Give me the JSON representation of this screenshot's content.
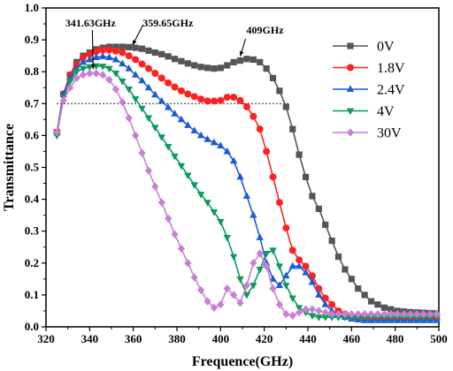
{
  "chart_data": {
    "type": "line",
    "title": "",
    "xlabel": "Frequence(GHz)",
    "ylabel": "Transmittance",
    "xlim": [
      320,
      500
    ],
    "ylim": [
      0.0,
      1.0
    ],
    "xticks": [
      320,
      340,
      360,
      380,
      400,
      420,
      440,
      460,
      480,
      500
    ],
    "yticks": [
      "0.0",
      "0.1",
      "0.2",
      "0.3",
      "0.4",
      "0.5",
      "0.6",
      "0.7",
      "0.8",
      "0.9",
      "1.0"
    ],
    "grid": false,
    "legend_position": "top-right",
    "reference_line": {
      "y": 0.7,
      "x_range": [
        325,
        431
      ],
      "style": "dotted"
    },
    "annotations": [
      {
        "text": "341.63GHz",
        "x": 341.63,
        "y": 0.8
      },
      {
        "text": "359.65GHz",
        "x": 359.65,
        "y": 0.875
      },
      {
        "text": "409GHz",
        "x": 409,
        "y": 0.84
      }
    ],
    "series": [
      {
        "name": "0V",
        "color": "#555555",
        "marker": "square",
        "x": [
          325,
          328,
          331,
          334,
          337,
          340,
          343,
          346,
          349,
          352,
          355,
          358,
          361,
          364,
          367,
          370,
          373,
          376,
          379,
          382,
          385,
          388,
          391,
          394,
          397,
          400,
          403,
          406,
          409,
          412,
          415,
          418,
          421,
          424,
          427,
          430,
          433,
          436,
          439,
          442,
          445,
          448,
          451,
          454,
          457,
          460,
          463,
          466,
          469,
          472,
          475,
          478,
          481,
          484,
          487,
          490,
          493,
          496,
          499
        ],
        "y": [
          0.61,
          0.73,
          0.79,
          0.83,
          0.85,
          0.86,
          0.87,
          0.875,
          0.878,
          0.878,
          0.878,
          0.877,
          0.875,
          0.872,
          0.866,
          0.86,
          0.855,
          0.848,
          0.84,
          0.833,
          0.826,
          0.82,
          0.815,
          0.812,
          0.81,
          0.812,
          0.82,
          0.83,
          0.835,
          0.84,
          0.838,
          0.83,
          0.81,
          0.78,
          0.74,
          0.69,
          0.62,
          0.54,
          0.47,
          0.41,
          0.37,
          0.32,
          0.27,
          0.22,
          0.18,
          0.15,
          0.12,
          0.1,
          0.08,
          0.07,
          0.06,
          0.055,
          0.05,
          0.048,
          0.046,
          0.045,
          0.044,
          0.043,
          0.042
        ]
      },
      {
        "name": "1.8V",
        "color": "#ff2020",
        "marker": "circle",
        "x": [
          325,
          328,
          331,
          334,
          337,
          340,
          343,
          346,
          349,
          352,
          355,
          358,
          361,
          364,
          367,
          370,
          373,
          376,
          379,
          382,
          385,
          388,
          391,
          394,
          397,
          400,
          403,
          406,
          409,
          412,
          415,
          418,
          421,
          424,
          427,
          430,
          433,
          436,
          439,
          442,
          445,
          448,
          451,
          454,
          457,
          460,
          463,
          466,
          469,
          472,
          475,
          478,
          481,
          484,
          487,
          490,
          493,
          496,
          499
        ],
        "y": [
          0.61,
          0.73,
          0.79,
          0.82,
          0.845,
          0.855,
          0.863,
          0.868,
          0.868,
          0.865,
          0.86,
          0.85,
          0.838,
          0.824,
          0.81,
          0.795,
          0.78,
          0.765,
          0.752,
          0.74,
          0.73,
          0.722,
          0.714,
          0.708,
          0.708,
          0.71,
          0.72,
          0.72,
          0.71,
          0.69,
          0.66,
          0.62,
          0.55,
          0.47,
          0.39,
          0.31,
          0.24,
          0.21,
          0.19,
          0.16,
          0.12,
          0.09,
          0.07,
          0.05,
          0.04,
          0.035,
          0.03,
          0.028,
          0.027,
          0.026,
          0.026,
          0.025,
          0.025,
          0.025,
          0.025,
          0.025,
          0.025,
          0.025,
          0.025
        ]
      },
      {
        "name": "2.4V",
        "color": "#1c5bd8",
        "marker": "triangle-up",
        "x": [
          325,
          328,
          331,
          334,
          337,
          340,
          343,
          346,
          349,
          352,
          355,
          358,
          361,
          364,
          367,
          370,
          373,
          376,
          379,
          382,
          385,
          388,
          391,
          394,
          397,
          400,
          403,
          406,
          409,
          412,
          415,
          418,
          421,
          424,
          427,
          430,
          433,
          436,
          439,
          442,
          445,
          448,
          451,
          454,
          457,
          460,
          463,
          466,
          469,
          472,
          475,
          478,
          481,
          484,
          487,
          490,
          493,
          496,
          499
        ],
        "y": [
          0.61,
          0.73,
          0.78,
          0.81,
          0.83,
          0.838,
          0.845,
          0.848,
          0.845,
          0.838,
          0.825,
          0.81,
          0.79,
          0.772,
          0.75,
          0.728,
          0.708,
          0.688,
          0.668,
          0.65,
          0.632,
          0.615,
          0.6,
          0.588,
          0.578,
          0.568,
          0.55,
          0.52,
          0.47,
          0.41,
          0.35,
          0.28,
          0.2,
          0.15,
          0.13,
          0.16,
          0.19,
          0.19,
          0.17,
          0.14,
          0.1,
          0.07,
          0.05,
          0.04,
          0.03,
          0.025,
          0.022,
          0.02,
          0.02,
          0.02,
          0.02,
          0.02,
          0.02,
          0.02,
          0.02,
          0.02,
          0.02,
          0.02,
          0.02
        ]
      },
      {
        "name": "4V",
        "color": "#0d9a5a",
        "marker": "triangle-down",
        "x": [
          325,
          328,
          331,
          334,
          337,
          340,
          343,
          346,
          349,
          352,
          355,
          358,
          361,
          364,
          367,
          370,
          373,
          376,
          379,
          382,
          385,
          388,
          391,
          394,
          397,
          400,
          403,
          406,
          409,
          412,
          415,
          418,
          421,
          424,
          427,
          430,
          433,
          436,
          439,
          442,
          445,
          448,
          451,
          454,
          457,
          460,
          463,
          466,
          469,
          472,
          475,
          478,
          481,
          484,
          487,
          490,
          493,
          496,
          499
        ],
        "y": [
          0.6,
          0.72,
          0.77,
          0.8,
          0.81,
          0.815,
          0.818,
          0.817,
          0.81,
          0.795,
          0.77,
          0.745,
          0.715,
          0.685,
          0.655,
          0.625,
          0.595,
          0.565,
          0.535,
          0.505,
          0.475,
          0.445,
          0.415,
          0.39,
          0.36,
          0.33,
          0.28,
          0.22,
          0.15,
          0.1,
          0.13,
          0.18,
          0.23,
          0.24,
          0.19,
          0.13,
          0.09,
          0.06,
          0.045,
          0.035,
          0.03,
          0.03,
          0.03,
          0.03,
          0.03,
          0.03,
          0.03,
          0.03,
          0.03,
          0.03,
          0.03,
          0.03,
          0.03,
          0.03,
          0.03,
          0.03,
          0.03,
          0.03,
          0.03
        ]
      },
      {
        "name": "30V",
        "color": "#c97fd6",
        "marker": "diamond",
        "x": [
          325,
          328,
          331,
          334,
          337,
          340,
          343,
          346,
          349,
          352,
          355,
          358,
          361,
          364,
          367,
          370,
          373,
          376,
          379,
          382,
          385,
          388,
          391,
          394,
          397,
          400,
          403,
          406,
          409,
          412,
          415,
          418,
          421,
          424,
          427,
          430,
          433,
          436,
          439,
          442,
          445,
          448,
          451,
          454,
          457,
          460,
          463,
          466,
          469,
          472,
          475,
          478,
          481,
          484,
          487,
          490,
          493,
          496,
          499
        ],
        "y": [
          0.61,
          0.71,
          0.75,
          0.78,
          0.79,
          0.795,
          0.795,
          0.79,
          0.775,
          0.745,
          0.705,
          0.655,
          0.6,
          0.545,
          0.49,
          0.44,
          0.39,
          0.34,
          0.29,
          0.245,
          0.2,
          0.155,
          0.115,
          0.08,
          0.06,
          0.07,
          0.12,
          0.1,
          0.075,
          0.13,
          0.2,
          0.23,
          0.19,
          0.12,
          0.07,
          0.04,
          0.035,
          0.045,
          0.055,
          0.055,
          0.05,
          0.045,
          0.04,
          0.04,
          0.04,
          0.04,
          0.04,
          0.04,
          0.04,
          0.04,
          0.04,
          0.04,
          0.04,
          0.04,
          0.04,
          0.04,
          0.04,
          0.04,
          0.04
        ]
      }
    ]
  }
}
